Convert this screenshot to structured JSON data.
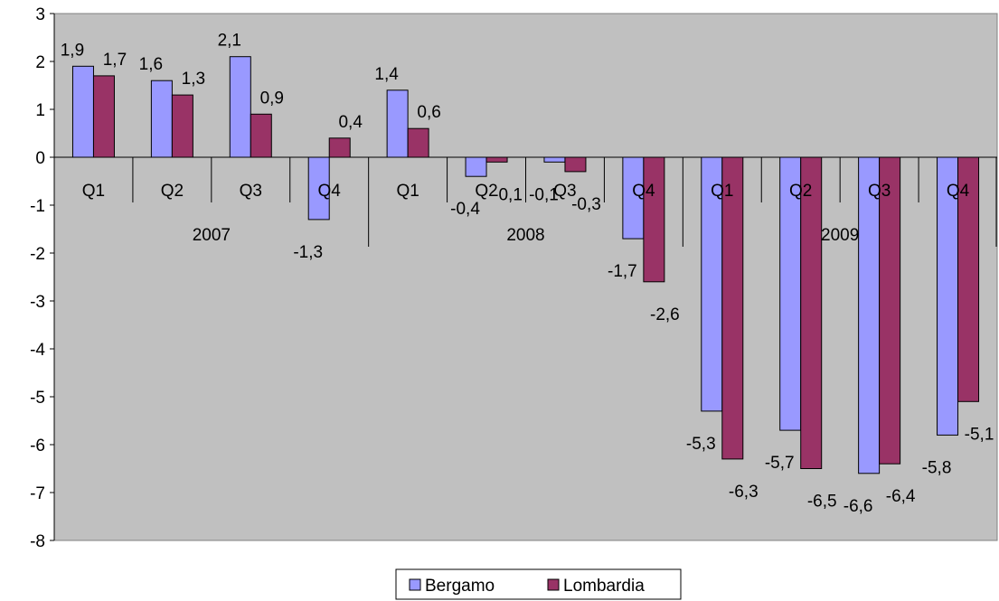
{
  "chart_data": {
    "type": "bar",
    "title": "",
    "xlabel": "",
    "ylabel": "",
    "ylim": [
      -8,
      3
    ],
    "yticks": [
      3,
      2,
      1,
      0,
      -1,
      -2,
      -3,
      -4,
      -5,
      -6,
      -7,
      -8
    ],
    "categories": [
      "Q1",
      "Q2",
      "Q3",
      "Q4",
      "Q1",
      "Q2",
      "Q3",
      "Q4",
      "Q1",
      "Q2",
      "Q3",
      "Q4"
    ],
    "groups": [
      {
        "label": "2007",
        "count": 4
      },
      {
        "label": "2008",
        "count": 4
      },
      {
        "label": "2009",
        "count": 4
      }
    ],
    "series": [
      {
        "name": "Bergamo",
        "color": "#9999ff",
        "values": [
          1.9,
          1.6,
          2.1,
          -1.3,
          1.4,
          -0.4,
          -0.1,
          -1.7,
          -5.3,
          -5.7,
          -6.6,
          -5.8
        ],
        "labels": [
          "1,9",
          "1,6",
          "2,1",
          "-1,3",
          "1,4",
          "-0,4",
          "-0,1",
          "-1,7",
          "-5,3",
          "-5,7",
          "-6,6",
          "-5,8"
        ]
      },
      {
        "name": "Lombardia",
        "color": "#993366",
        "values": [
          1.7,
          1.3,
          0.9,
          0.4,
          0.6,
          -0.1,
          -0.3,
          -2.6,
          -6.3,
          -6.5,
          -6.4,
          -5.1
        ],
        "labels": [
          "1,7",
          "1,3",
          "0,9",
          "0,4",
          "0,6",
          "-0,1",
          "-0,3",
          "-2,6",
          "-6,3",
          "-6,5",
          "-6,4",
          "-5,1"
        ]
      }
    ],
    "legend": {
      "position": "bottom-center"
    },
    "plot_background": "#c0c0c0",
    "grid": false
  }
}
